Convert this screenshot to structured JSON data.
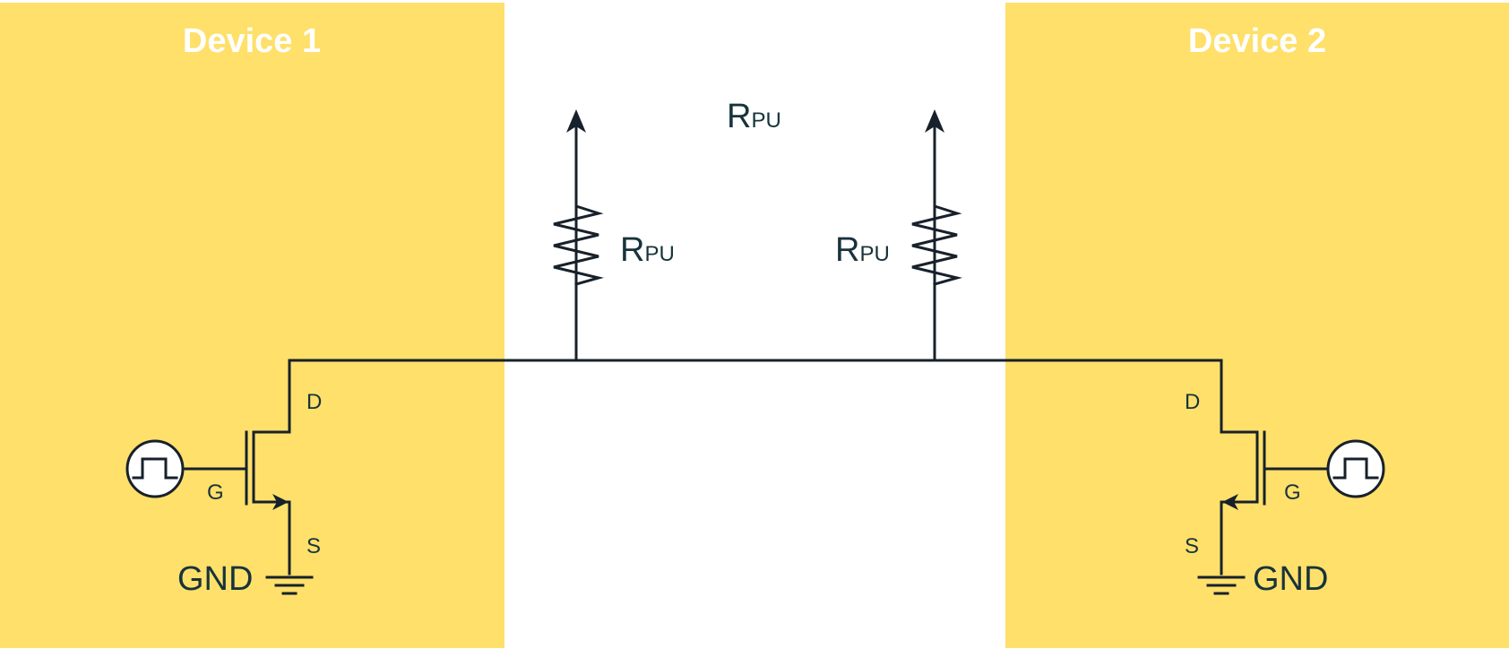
{
  "device1": {
    "title": "Device 1",
    "pins": {
      "drain": "D",
      "gate": "G",
      "source": "S"
    },
    "ground_label": "GND"
  },
  "device2": {
    "title": "Device 2",
    "pins": {
      "drain": "D",
      "gate": "G",
      "source": "S"
    },
    "ground_label": "GND"
  },
  "resistor_left": {
    "label_main": "R",
    "label_sub": "PU"
  },
  "resistor_right": {
    "label_main": "R",
    "label_sub": "PU"
  },
  "floating_label": {
    "label_main": "R",
    "label_sub": "PU"
  },
  "colors": {
    "panel": "#fee06a",
    "wire": "#17212b",
    "text": "#17333b",
    "title": "#ffffff"
  }
}
